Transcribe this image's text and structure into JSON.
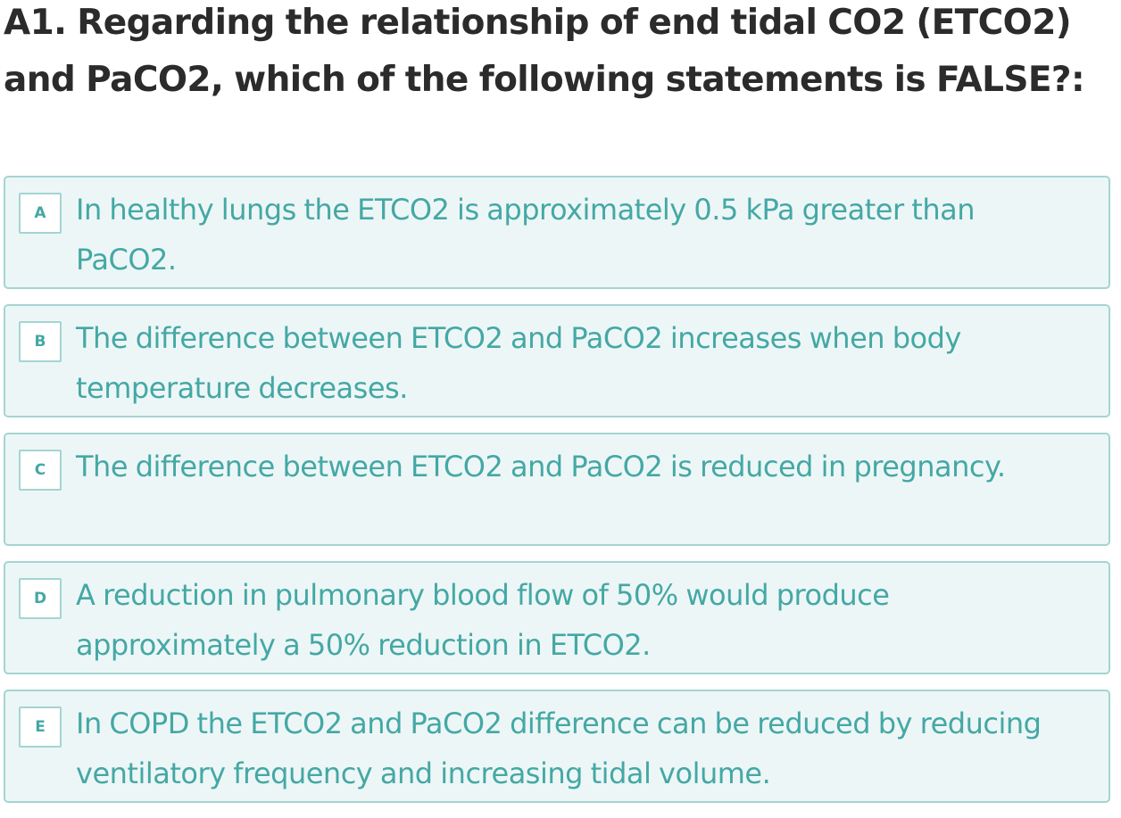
{
  "question": {
    "text": "A1. Regarding the relationship of end tidal CO2 (ETCO2) and PaCO2, which of the following statements is FALSE?:"
  },
  "options": [
    {
      "letter": "A",
      "text": "In healthy lungs the ETCO2 is approximately 0.5 kPa greater than PaCO2."
    },
    {
      "letter": "B",
      "text": "The difference between ETCO2 and PaCO2 increases when body temperature decreases."
    },
    {
      "letter": "C",
      "text": "The difference between ETCO2 and PaCO2 is reduced in pregnancy."
    },
    {
      "letter": "D",
      "text": "A reduction in pulmonary blood flow of 50% would produce approximately a 50% reduction in ETCO2."
    },
    {
      "letter": "E",
      "text": "In COPD the ETCO2 and PaCO2 difference can be reduced by reducing ventilatory frequency and increasing tidal volume."
    }
  ],
  "colors": {
    "question_text": "#2b2b2b",
    "option_text": "#44a8a5",
    "option_background": "#edf6f6",
    "option_border": "#a3d5d3"
  }
}
